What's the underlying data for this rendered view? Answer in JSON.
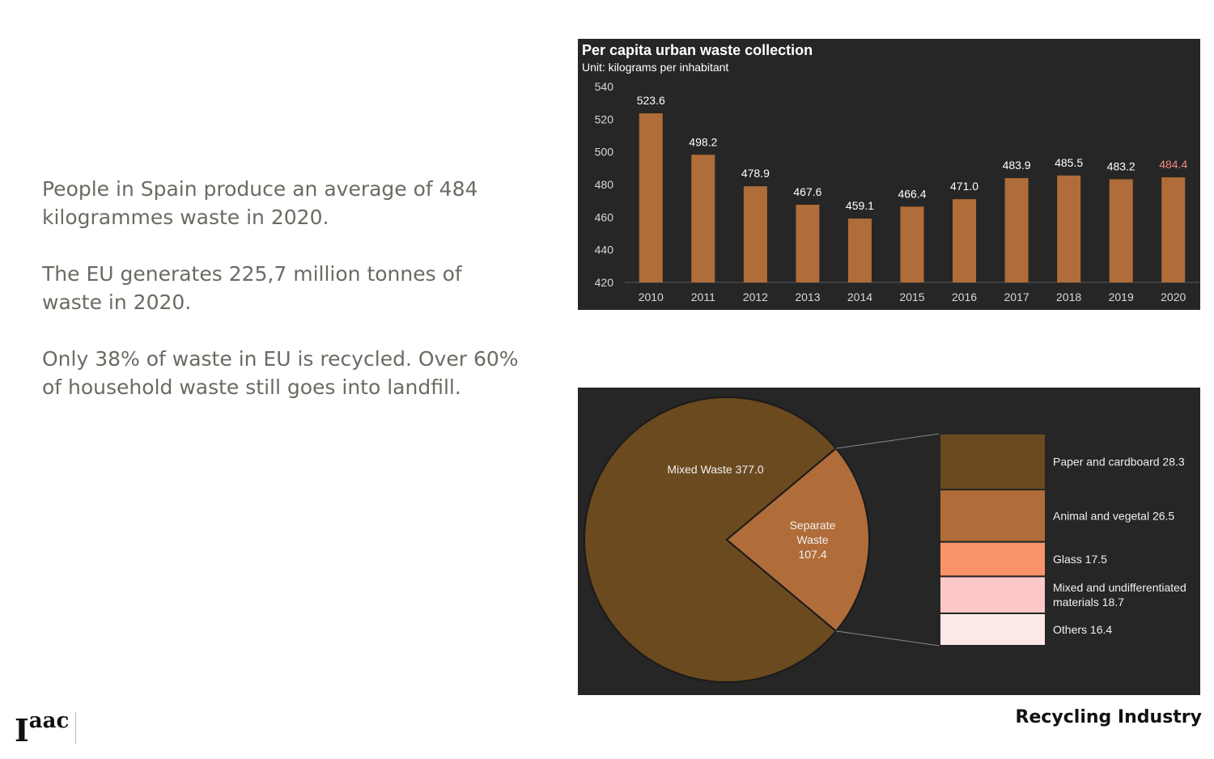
{
  "left_text": {
    "p1": "People in Spain produce an average of 484 kilogrammes waste in 2020.",
    "p2": "The EU generates 225,7 million tonnes of waste in 2020.",
    "p3": "Only 38% of waste in EU is recycled. Over 60% of household waste still goes into landfill."
  },
  "footer": {
    "title": "Recycling Industry",
    "logo_big": "I",
    "logo_small": "aac"
  },
  "chart_data": [
    {
      "type": "bar",
      "title": "Per capita urban waste collection",
      "subtitle": "Unit: kilograms per inhabitant",
      "categories": [
        "2010",
        "2011",
        "2012",
        "2013",
        "2014",
        "2015",
        "2016",
        "2017",
        "2018",
        "2019",
        "2020"
      ],
      "values": [
        523.6,
        498.2,
        478.9,
        467.6,
        459.1,
        466.4,
        471.0,
        483.9,
        485.5,
        483.2,
        484.4
      ],
      "value_labels": [
        "523.6",
        "498.2",
        "478.9",
        "467.6",
        "459.1",
        "466.4",
        "471.0",
        "483.9",
        "485.5",
        "483.2",
        "484.4"
      ],
      "yticks": [
        540,
        520,
        500,
        480,
        460,
        440,
        420
      ],
      "ylim": [
        420,
        540
      ],
      "grid": false,
      "bar_color": "#b06d39",
      "highlight_label_color": "#f08a80"
    },
    {
      "type": "pie",
      "slices": [
        {
          "label": "Mixed Waste 377.0",
          "value": 377.0,
          "color": "#6b4a1f"
        },
        {
          "label_lines": [
            "Separate",
            "Waste",
            "107.4"
          ],
          "value": 107.4,
          "color": "#b06d39"
        }
      ],
      "breakdown": [
        {
          "label": "Paper and cardboard 28.3",
          "value": 28.3,
          "color": "#6b4a1f"
        },
        {
          "label": "Animal and vegetal 26.5",
          "value": 26.5,
          "color": "#b06d39"
        },
        {
          "label": "Glass 17.5",
          "value": 17.5,
          "color": "#f9946a"
        },
        {
          "label_lines": [
            "Mixed and undifferentiated",
            "materials 18.7"
          ],
          "value": 18.7,
          "color": "#fdc8c8"
        },
        {
          "label": "Others 16.4",
          "value": 16.4,
          "color": "#fde8e8"
        }
      ]
    }
  ]
}
